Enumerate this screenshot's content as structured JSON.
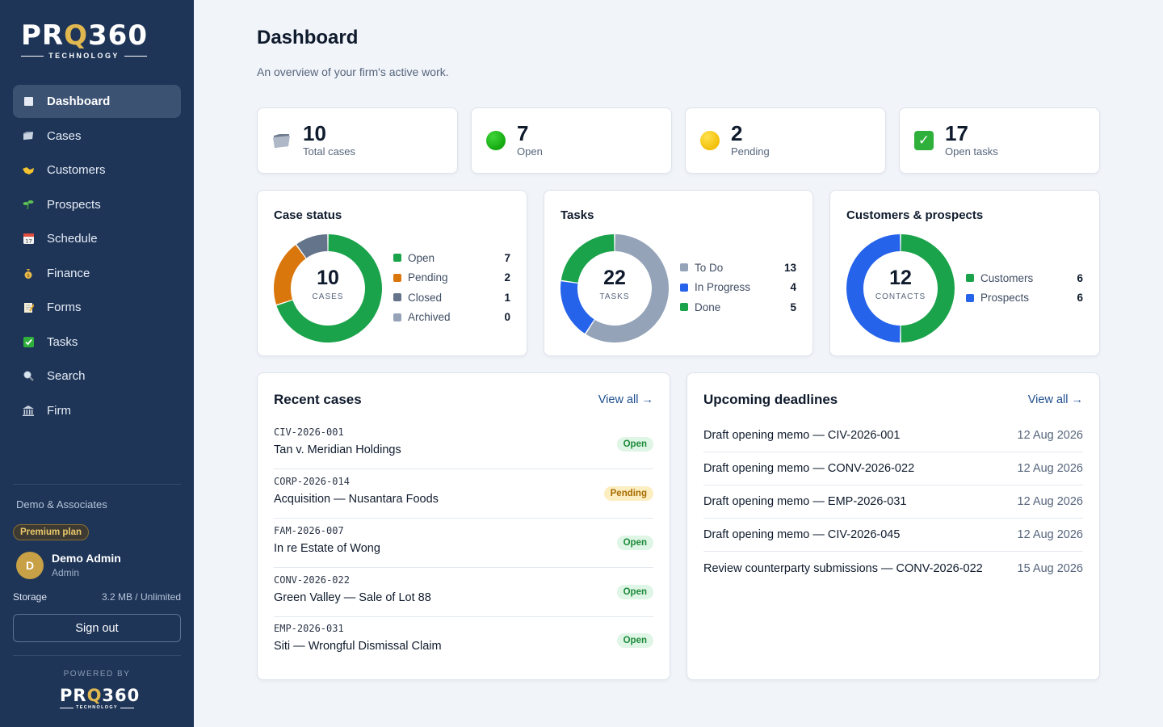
{
  "brand": {
    "logo_main_a": "PR",
    "logo_main_b": "Q",
    "logo_main_c": "360",
    "logo_sub": "TECHNOLOGY"
  },
  "sidebar": {
    "items": [
      {
        "label": "Dashboard",
        "icon": "square-icon",
        "active": true
      },
      {
        "label": "Cases",
        "icon": "folder-icon"
      },
      {
        "label": "Customers",
        "icon": "handshake-icon"
      },
      {
        "label": "Prospects",
        "icon": "seedling-icon"
      },
      {
        "label": "Schedule",
        "icon": "calendar-icon"
      },
      {
        "label": "Finance",
        "icon": "money-bag-icon"
      },
      {
        "label": "Forms",
        "icon": "memo-icon"
      },
      {
        "label": "Tasks",
        "icon": "check-icon"
      },
      {
        "label": "Search",
        "icon": "magnifier-icon"
      },
      {
        "label": "Firm",
        "icon": "bank-icon"
      }
    ],
    "firm_name": "Demo & Associates",
    "plan": "Premium plan",
    "user": {
      "initial": "D",
      "name": "Demo Admin",
      "role": "Admin"
    },
    "storage_label": "Storage",
    "storage_value": "3.2 MB / Unlimited",
    "sign_out": "Sign out",
    "powered_by": "POWERED BY"
  },
  "header": {
    "title": "Dashboard",
    "subtitle": "An overview of your firm's active work."
  },
  "stats": [
    {
      "value": "10",
      "label": "Total cases",
      "icon": "folder-icon"
    },
    {
      "value": "7",
      "label": "Open",
      "icon": "green-circle-icon"
    },
    {
      "value": "2",
      "label": "Pending",
      "icon": "yellow-circle-icon"
    },
    {
      "value": "17",
      "label": "Open tasks",
      "icon": "check-box-icon"
    }
  ],
  "colors": {
    "green": "#1aa34a",
    "orange": "#d9760c",
    "slate": "#64748b",
    "gray": "#94a3b8",
    "blue": "#2563eb"
  },
  "chart_data": [
    {
      "type": "pie",
      "title": "Case status",
      "center_value": "10",
      "center_label": "CASES",
      "categories": [
        "Open",
        "Pending",
        "Closed",
        "Archived"
      ],
      "values": [
        7,
        2,
        1,
        0
      ],
      "colors": [
        "#1aa34a",
        "#d9760c",
        "#64748b",
        "#94a3b8"
      ]
    },
    {
      "type": "pie",
      "title": "Tasks",
      "center_value": "22",
      "center_label": "TASKS",
      "categories": [
        "To Do",
        "In Progress",
        "Done"
      ],
      "values": [
        13,
        4,
        5
      ],
      "colors": [
        "#94a3b8",
        "#2563eb",
        "#1aa34a"
      ]
    },
    {
      "type": "pie",
      "title": "Customers & prospects",
      "center_value": "12",
      "center_label": "CONTACTS",
      "categories": [
        "Customers",
        "Prospects"
      ],
      "values": [
        6,
        6
      ],
      "colors": [
        "#1aa34a",
        "#2563eb"
      ]
    }
  ],
  "recent_cases": {
    "title": "Recent cases",
    "view_all": "View all →",
    "rows": [
      {
        "number": "CIV-2026-001",
        "name": "Tan v. Meridian Holdings",
        "status": "Open"
      },
      {
        "number": "CORP-2026-014",
        "name": "Acquisition — Nusantara Foods",
        "status": "Pending"
      },
      {
        "number": "FAM-2026-007",
        "name": "In re Estate of Wong",
        "status": "Open"
      },
      {
        "number": "CONV-2026-022",
        "name": "Green Valley — Sale of Lot 88",
        "status": "Open"
      },
      {
        "number": "EMP-2026-031",
        "name": "Siti — Wrongful Dismissal Claim",
        "status": "Open"
      }
    ]
  },
  "deadlines": {
    "title": "Upcoming deadlines",
    "view_all": "View all →",
    "rows": [
      {
        "title": "Draft opening memo — CIV-2026-001",
        "date": "12 Aug 2026"
      },
      {
        "title": "Draft opening memo — CONV-2026-022",
        "date": "12 Aug 2026"
      },
      {
        "title": "Draft opening memo — EMP-2026-031",
        "date": "12 Aug 2026"
      },
      {
        "title": "Draft opening memo — CIV-2026-045",
        "date": "12 Aug 2026"
      },
      {
        "title": "Review counterparty submissions — CONV-2026-022",
        "date": "15 Aug 2026"
      }
    ]
  }
}
